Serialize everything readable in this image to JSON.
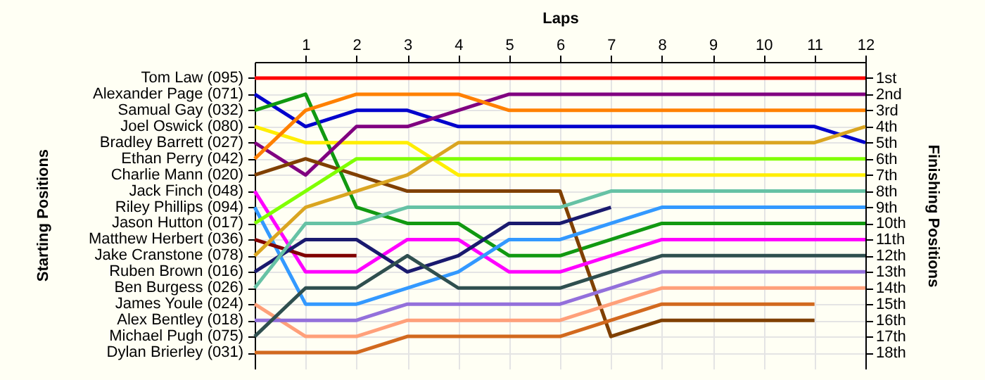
{
  "chart_data": {
    "type": "line",
    "xlabel": "Laps",
    "ylabel": "Finishing Positions",
    "annotations": [
      "Starting Positions"
    ],
    "x": [
      0,
      1,
      2,
      3,
      4,
      5,
      6,
      7,
      8,
      9,
      10,
      11,
      12
    ],
    "xlim": [
      0,
      12
    ],
    "xticks": [
      1,
      2,
      3,
      4,
      5,
      6,
      7,
      8,
      9,
      10,
      11,
      12
    ],
    "ylim": [
      19,
      0
    ],
    "yticks": [
      {
        "value": 1,
        "label": "1st"
      },
      {
        "value": 2,
        "label": "2nd"
      },
      {
        "value": 3,
        "label": "3rd"
      },
      {
        "value": 4,
        "label": "4th"
      },
      {
        "value": 5,
        "label": "5th"
      },
      {
        "value": 6,
        "label": "6th"
      },
      {
        "value": 7,
        "label": "7th"
      },
      {
        "value": 8,
        "label": "8th"
      },
      {
        "value": 9,
        "label": "9th"
      },
      {
        "value": 10,
        "label": "10th"
      },
      {
        "value": 11,
        "label": "11th"
      },
      {
        "value": 12,
        "label": "12th"
      },
      {
        "value": 13,
        "label": "13th"
      },
      {
        "value": 14,
        "label": "14th"
      },
      {
        "value": 15,
        "label": "15th"
      },
      {
        "value": 16,
        "label": "16th"
      },
      {
        "value": 17,
        "label": "17th"
      },
      {
        "value": 18,
        "label": "18th"
      }
    ],
    "grid": true,
    "series": [
      {
        "name": "Tom Law (095)",
        "color": "#ff0000",
        "values": [
          1,
          1,
          1,
          1,
          1,
          1,
          1,
          1,
          1,
          1,
          1,
          1,
          1
        ]
      },
      {
        "name": "Alexander Page (071)",
        "color": "#0000cc",
        "values": [
          2,
          4,
          3,
          3,
          4,
          4,
          4,
          4,
          4,
          4,
          4,
          4,
          5
        ]
      },
      {
        "name": "Samual Gay (032)",
        "color": "#119911",
        "values": [
          3,
          2,
          9,
          10,
          10,
          12,
          12,
          11,
          10,
          10,
          10,
          10,
          10
        ]
      },
      {
        "name": "Joel Oswick (080)",
        "color": "#ffee00",
        "values": [
          4,
          5,
          5,
          5,
          7,
          7,
          7,
          7,
          7,
          7,
          7,
          7,
          7
        ]
      },
      {
        "name": "Bradley Barrett (027)",
        "color": "#800080",
        "values": [
          5,
          7,
          4,
          4,
          3,
          2,
          2,
          2,
          2,
          2,
          2,
          2,
          2
        ]
      },
      {
        "name": "Ethan Perry (042)",
        "color": "#ff8000",
        "values": [
          6,
          3,
          2,
          2,
          2,
          3,
          3,
          3,
          3,
          3,
          3,
          3,
          3
        ]
      },
      {
        "name": "Charlie Mann (020)",
        "color": "#804000",
        "values": [
          7,
          6,
          7,
          8,
          8,
          8,
          8,
          17,
          16,
          16,
          16,
          16,
          null
        ]
      },
      {
        "name": "Jack Finch (048)",
        "color": "#ff00ff",
        "values": [
          8,
          13,
          13,
          11,
          11,
          13,
          13,
          12,
          11,
          11,
          11,
          11,
          11
        ]
      },
      {
        "name": "Riley Phillips (094)",
        "color": "#3399ff",
        "values": [
          9,
          15,
          15,
          14,
          13,
          11,
          11,
          10,
          9,
          9,
          9,
          9,
          9
        ]
      },
      {
        "name": "Jason Hutton (017)",
        "color": "#80ff00",
        "values": [
          10,
          8,
          6,
          6,
          6,
          6,
          6,
          6,
          6,
          6,
          6,
          6,
          6
        ]
      },
      {
        "name": "Matthew Herbert (036)",
        "color": "#800000",
        "values": [
          11,
          12,
          12,
          null,
          null,
          null,
          null,
          null,
          null,
          null,
          null,
          null,
          null
        ]
      },
      {
        "name": "Jake Cranstone (078)",
        "color": "#daa520",
        "values": [
          12,
          9,
          8,
          7,
          5,
          5,
          5,
          5,
          5,
          5,
          5,
          5,
          4
        ]
      },
      {
        "name": "Ruben Brown (016)",
        "color": "#1a1a6e",
        "values": [
          13,
          11,
          11,
          13,
          12,
          10,
          10,
          9,
          null,
          null,
          null,
          null,
          null
        ]
      },
      {
        "name": "Ben Burgess (026)",
        "color": "#66c2a5",
        "values": [
          14,
          10,
          10,
          9,
          9,
          9,
          9,
          8,
          8,
          8,
          8,
          8,
          8
        ]
      },
      {
        "name": "James Youle (024)",
        "color": "#ffa07a",
        "values": [
          15,
          17,
          17,
          16,
          16,
          16,
          16,
          15,
          14,
          14,
          14,
          14,
          14
        ]
      },
      {
        "name": "Alex Bentley (018)",
        "color": "#9370db",
        "values": [
          16,
          16,
          16,
          15,
          15,
          15,
          15,
          14,
          13,
          13,
          13,
          13,
          13
        ]
      },
      {
        "name": "Michael Pugh (075)",
        "color": "#2f4f4f",
        "values": [
          17,
          14,
          14,
          12,
          14,
          14,
          14,
          13,
          12,
          12,
          12,
          12,
          12
        ]
      },
      {
        "name": "Dylan Brierley (031)",
        "color": "#d2691e",
        "values": [
          18,
          18,
          18,
          17,
          17,
          17,
          17,
          16,
          15,
          15,
          15,
          15,
          null
        ]
      }
    ]
  }
}
